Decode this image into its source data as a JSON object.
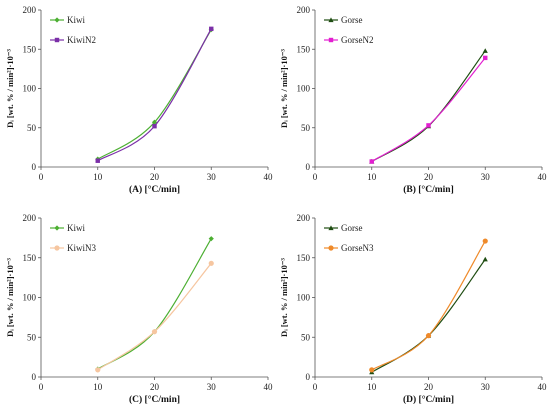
{
  "chart_data": [
    {
      "type": "line",
      "xlabel": "(A) [°C/min]",
      "ylabel": "Dᵢ [wt. % / min²]·10⁻³",
      "xlim": [
        0,
        40
      ],
      "ylim": [
        0,
        200
      ],
      "xticks": [
        0,
        10,
        20,
        30,
        40
      ],
      "yticks": [
        0,
        50,
        100,
        150,
        200
      ],
      "legend": "top-left",
      "series": [
        {
          "name": "Kiwi",
          "color": "#4caf32",
          "marker": "diamond",
          "x": [
            10,
            20,
            30
          ],
          "y": [
            10,
            57,
            175
          ]
        },
        {
          "name": "KiwiN2",
          "color": "#7b2fa8",
          "marker": "square",
          "x": [
            10,
            20,
            30
          ],
          "y": [
            8,
            52,
            176
          ]
        }
      ]
    },
    {
      "type": "line",
      "xlabel": "(B) [°C/min]",
      "ylabel": "Dᵢ [wt. % / min²]·10⁻³",
      "xlim": [
        0,
        40
      ],
      "ylim": [
        0,
        200
      ],
      "xticks": [
        0,
        10,
        20,
        30,
        40
      ],
      "yticks": [
        0,
        50,
        100,
        150,
        200
      ],
      "legend": "top-left",
      "series": [
        {
          "name": "Gorse",
          "color": "#1f4d12",
          "marker": "triangle",
          "x": [
            10,
            20,
            30
          ],
          "y": [
            7,
            52,
            148
          ]
        },
        {
          "name": "GorseN2",
          "color": "#e21fd0",
          "marker": "square",
          "x": [
            10,
            20,
            30
          ],
          "y": [
            7,
            53,
            139
          ]
        }
      ]
    },
    {
      "type": "line",
      "xlabel": "(C) [°C/min]",
      "ylabel": "Dᵢ [wt. % / min²]·10⁻³",
      "xlim": [
        0,
        40
      ],
      "ylim": [
        0,
        200
      ],
      "xticks": [
        0,
        10,
        20,
        30,
        40
      ],
      "yticks": [
        0,
        50,
        100,
        150,
        200
      ],
      "legend": "top-left",
      "series": [
        {
          "name": "Kiwi",
          "color": "#4caf32",
          "marker": "diamond",
          "x": [
            10,
            20,
            30
          ],
          "y": [
            10,
            57,
            174
          ]
        },
        {
          "name": "KiwiN3",
          "color": "#f6c6a0",
          "marker": "circle",
          "x": [
            10,
            20,
            30
          ],
          "y": [
            9,
            57,
            143
          ]
        }
      ]
    },
    {
      "type": "line",
      "xlabel": "(D) [°C/min]",
      "ylabel": "Dᵢ [wt. % / min²]·10⁻³",
      "xlim": [
        0,
        40
      ],
      "ylim": [
        0,
        200
      ],
      "xticks": [
        0,
        10,
        20,
        30,
        40
      ],
      "yticks": [
        0,
        50,
        100,
        150,
        200
      ],
      "legend": "top-left",
      "series": [
        {
          "name": "Gorse",
          "color": "#1f4d12",
          "marker": "triangle",
          "x": [
            10,
            20,
            30
          ],
          "y": [
            6,
            52,
            148
          ]
        },
        {
          "name": "GorseN3",
          "color": "#ef8a2a",
          "marker": "circle",
          "x": [
            10,
            20,
            30
          ],
          "y": [
            9,
            52,
            171
          ]
        }
      ]
    }
  ]
}
